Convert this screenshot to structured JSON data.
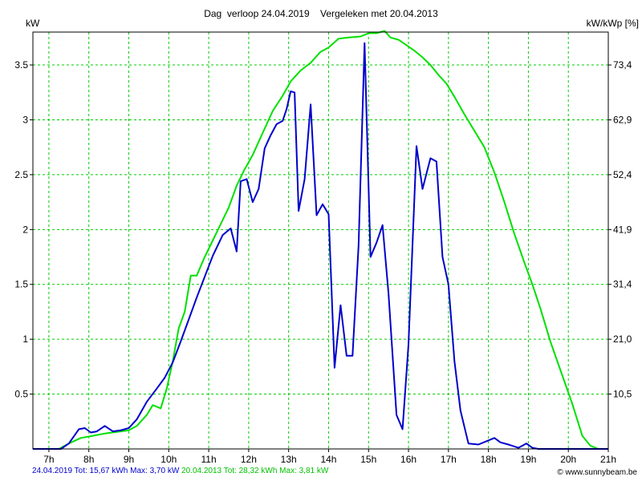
{
  "chart_data": {
    "type": "line",
    "title": "Dag  verloop 24.04.2019    Vergeleken met 20.04.2013",
    "ylabel": "kW",
    "ylabel_right": "kW/kWp [%]",
    "xlim": [
      6.6,
      21.0
    ],
    "ylim": [
      0,
      3.8
    ],
    "grid": true,
    "x_ticks": [
      7,
      8,
      9,
      10,
      11,
      12,
      13,
      14,
      15,
      16,
      17,
      18,
      19,
      20,
      21
    ],
    "x_tick_labels": [
      "7h",
      "8h",
      "9h",
      "10h",
      "11h",
      "12h",
      "13h",
      "14h",
      "15h",
      "16h",
      "17h",
      "18h",
      "19h",
      "20h",
      "21h"
    ],
    "y_ticks": [
      0.5,
      1,
      1.5,
      2,
      2.5,
      3,
      3.5
    ],
    "y_tick_labels": [
      "0.5",
      "1",
      "1.5",
      "2",
      "2.5",
      "3",
      "3.5"
    ],
    "y2_tick_labels": [
      "10,5",
      "21,0",
      "31,4",
      "41,9",
      "52,4",
      "62,9",
      "73,4"
    ],
    "series": [
      {
        "name": "24.04.2019",
        "color": "#0000cc",
        "x": [
          6.6,
          7.3,
          7.5,
          7.75,
          7.9,
          8.05,
          8.2,
          8.4,
          8.6,
          8.8,
          9.0,
          9.2,
          9.45,
          9.7,
          9.9,
          10.1,
          10.3,
          10.5,
          10.7,
          10.9,
          11.1,
          11.35,
          11.55,
          11.7,
          11.8,
          11.95,
          12.1,
          12.25,
          12.4,
          12.55,
          12.7,
          12.85,
          12.95,
          13.05,
          13.15,
          13.25,
          13.4,
          13.55,
          13.7,
          13.85,
          14.0,
          14.15,
          14.3,
          14.45,
          14.6,
          14.75,
          14.9,
          15.05,
          15.2,
          15.35,
          15.5,
          15.7,
          15.85,
          16.0,
          16.2,
          16.35,
          16.55,
          16.7,
          16.85,
          17.0,
          17.15,
          17.3,
          17.5,
          17.75,
          17.95,
          18.15,
          18.3,
          18.5,
          18.75,
          18.95,
          19.1,
          19.25,
          19.4,
          20.0,
          20.5,
          21.0
        ],
        "y": [
          0.0,
          0.0,
          0.05,
          0.18,
          0.19,
          0.15,
          0.16,
          0.21,
          0.16,
          0.17,
          0.19,
          0.27,
          0.43,
          0.55,
          0.65,
          0.79,
          0.98,
          1.18,
          1.38,
          1.57,
          1.76,
          1.95,
          2.01,
          1.8,
          2.44,
          2.46,
          2.25,
          2.37,
          2.74,
          2.86,
          2.96,
          2.99,
          3.1,
          3.26,
          3.25,
          2.17,
          2.46,
          3.14,
          2.13,
          2.23,
          2.14,
          0.74,
          1.31,
          0.85,
          0.85,
          1.85,
          3.7,
          1.75,
          1.88,
          2.04,
          1.42,
          0.31,
          0.18,
          0.95,
          2.76,
          2.37,
          2.65,
          2.62,
          1.75,
          1.5,
          0.8,
          0.35,
          0.05,
          0.04,
          0.07,
          0.1,
          0.06,
          0.04,
          0.01,
          0.05,
          0.01,
          0.0,
          0.0,
          0.0,
          0.0,
          0.0
        ]
      },
      {
        "name": "20.04.2013",
        "color": "#00e000",
        "x": [
          6.6,
          7.25,
          7.5,
          7.8,
          8.1,
          8.4,
          8.8,
          9.0,
          9.2,
          9.45,
          9.6,
          9.8,
          9.95,
          10.1,
          10.25,
          10.4,
          10.55,
          10.7,
          10.9,
          11.1,
          11.3,
          11.5,
          11.7,
          11.9,
          12.1,
          12.35,
          12.6,
          12.85,
          13.05,
          13.3,
          13.55,
          13.8,
          14.0,
          14.25,
          14.5,
          14.8,
          15.0,
          15.2,
          15.4,
          15.55,
          15.75,
          15.95,
          16.15,
          16.35,
          16.55,
          16.75,
          16.95,
          17.15,
          17.4,
          17.65,
          17.9,
          18.15,
          18.4,
          18.65,
          18.9,
          19.1,
          19.3,
          19.55,
          19.8,
          20.1,
          20.35,
          20.55,
          20.75,
          21.0
        ],
        "y": [
          0.0,
          0.0,
          0.05,
          0.1,
          0.12,
          0.14,
          0.16,
          0.17,
          0.21,
          0.31,
          0.4,
          0.37,
          0.55,
          0.8,
          1.1,
          1.25,
          1.58,
          1.58,
          1.75,
          1.9,
          2.05,
          2.2,
          2.4,
          2.55,
          2.68,
          2.88,
          3.08,
          3.22,
          3.35,
          3.45,
          3.52,
          3.62,
          3.66,
          3.74,
          3.75,
          3.76,
          3.79,
          3.79,
          3.81,
          3.75,
          3.73,
          3.68,
          3.63,
          3.57,
          3.5,
          3.41,
          3.33,
          3.21,
          3.05,
          2.9,
          2.75,
          2.52,
          2.25,
          1.96,
          1.7,
          1.5,
          1.28,
          0.98,
          0.72,
          0.41,
          0.12,
          0.03,
          0.0,
          0.0
        ]
      }
    ]
  },
  "legend": {
    "series1_text": "24.04.2019 Tot: 15,67 kWh Max: 3,70 kW",
    "series2_text": "20.04.2013 Tot: 28,32 kWh Max: 3,81 kW"
  },
  "credit": "© www.sunnybeam.be",
  "colors": {
    "grid": "#00cc00",
    "axis": "#000000"
  }
}
